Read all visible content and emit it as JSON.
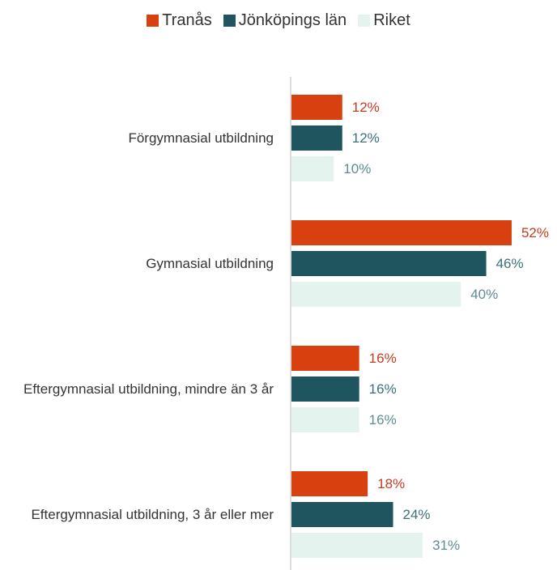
{
  "chart_data": {
    "type": "bar",
    "orientation": "horizontal",
    "categories": [
      "Förgymnasial utbildning",
      "Gymnasial utbildning",
      "Eftergymnasial utbildning, mindre än 3 år",
      "Eftergymnasial utbildning, 3 år eller mer"
    ],
    "series": [
      {
        "name": "Tranås",
        "color": "#d9400f",
        "label_color": "#c63a22",
        "values": [
          12,
          52,
          16,
          18
        ],
        "value_labels": [
          "12%",
          "52%",
          "16%",
          "18%"
        ]
      },
      {
        "name": "Jönköpings län",
        "color": "#1f555e",
        "label_color": "#3b7279",
        "values": [
          12,
          46,
          16,
          24
        ],
        "value_labels": [
          "12%",
          "46%",
          "16%",
          "24%"
        ]
      },
      {
        "name": "Riket",
        "color": "#e5f3ef",
        "label_color": "#5d8d91",
        "values": [
          10,
          40,
          16,
          31
        ],
        "value_labels": [
          "10%",
          "40%",
          "16%",
          "31%"
        ]
      }
    ],
    "legend": "top"
  }
}
